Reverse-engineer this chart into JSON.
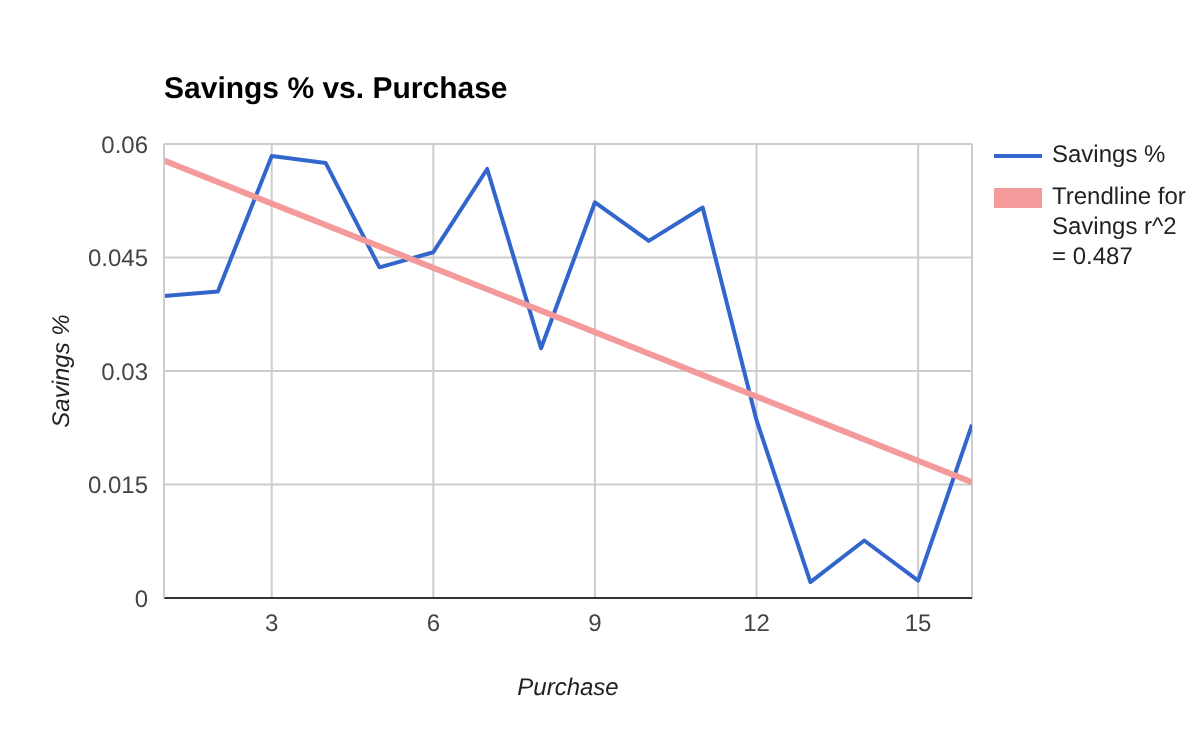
{
  "chart_data": {
    "type": "line",
    "title": "Savings % vs. Purchase",
    "xlabel": "Purchase",
    "ylabel": "Savings %",
    "x": [
      1,
      2,
      3,
      4,
      5,
      6,
      7,
      8,
      9,
      10,
      11,
      12,
      13,
      14,
      15,
      16
    ],
    "series": [
      {
        "name": "Savings %",
        "color": "#3366cc",
        "values": [
          0.0399,
          0.0405,
          0.0584,
          0.0575,
          0.0437,
          0.0457,
          0.0567,
          0.033,
          0.0523,
          0.0472,
          0.0516,
          0.0235,
          0.0021,
          0.0076,
          0.0023,
          0.0229
        ]
      },
      {
        "name": "Trendline for Savings r^2 = 0.487",
        "type": "line",
        "color": "#f49a9a",
        "x": [
          1,
          16
        ],
        "values": [
          0.0578,
          0.0153
        ]
      }
    ],
    "xlim": [
      1,
      16
    ],
    "xticks": [
      3,
      6,
      9,
      12,
      15
    ],
    "ylim": [
      0,
      0.06
    ],
    "yticks": [
      0,
      0.015,
      0.045,
      0.03,
      0.06
    ],
    "grid": true,
    "legend": "right",
    "marker": "none",
    "line_style": "solid"
  }
}
